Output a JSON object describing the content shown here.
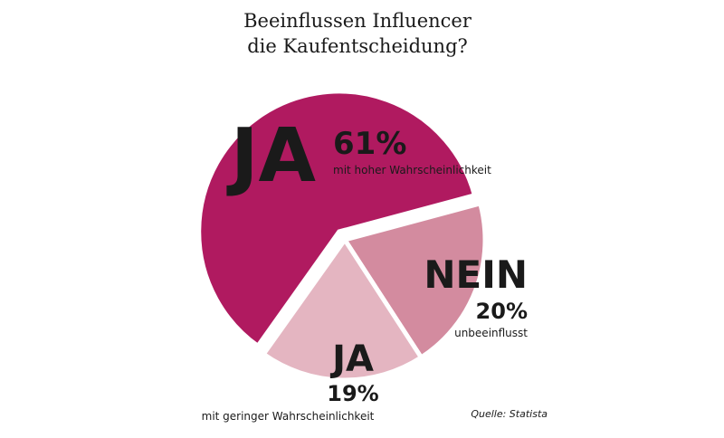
{
  "chart_data": {
    "type": "pie",
    "title": [
      "Beeinflussen Influencer",
      "die Kaufentscheidung?"
    ],
    "categories": [
      "JA",
      "NEIN",
      "JA"
    ],
    "values": [
      61,
      20,
      19
    ],
    "value_labels": [
      "61%",
      "20%",
      "19%"
    ],
    "descriptions": [
      "mit hoher Wahrscheinlichkeit",
      "unbeeinflusst",
      "mit geringer Wahrscheinlichkeit"
    ],
    "colors": [
      "#b01a60",
      "#d38b9f",
      "#e4b5c1"
    ],
    "source": "Quelle: Statista"
  }
}
